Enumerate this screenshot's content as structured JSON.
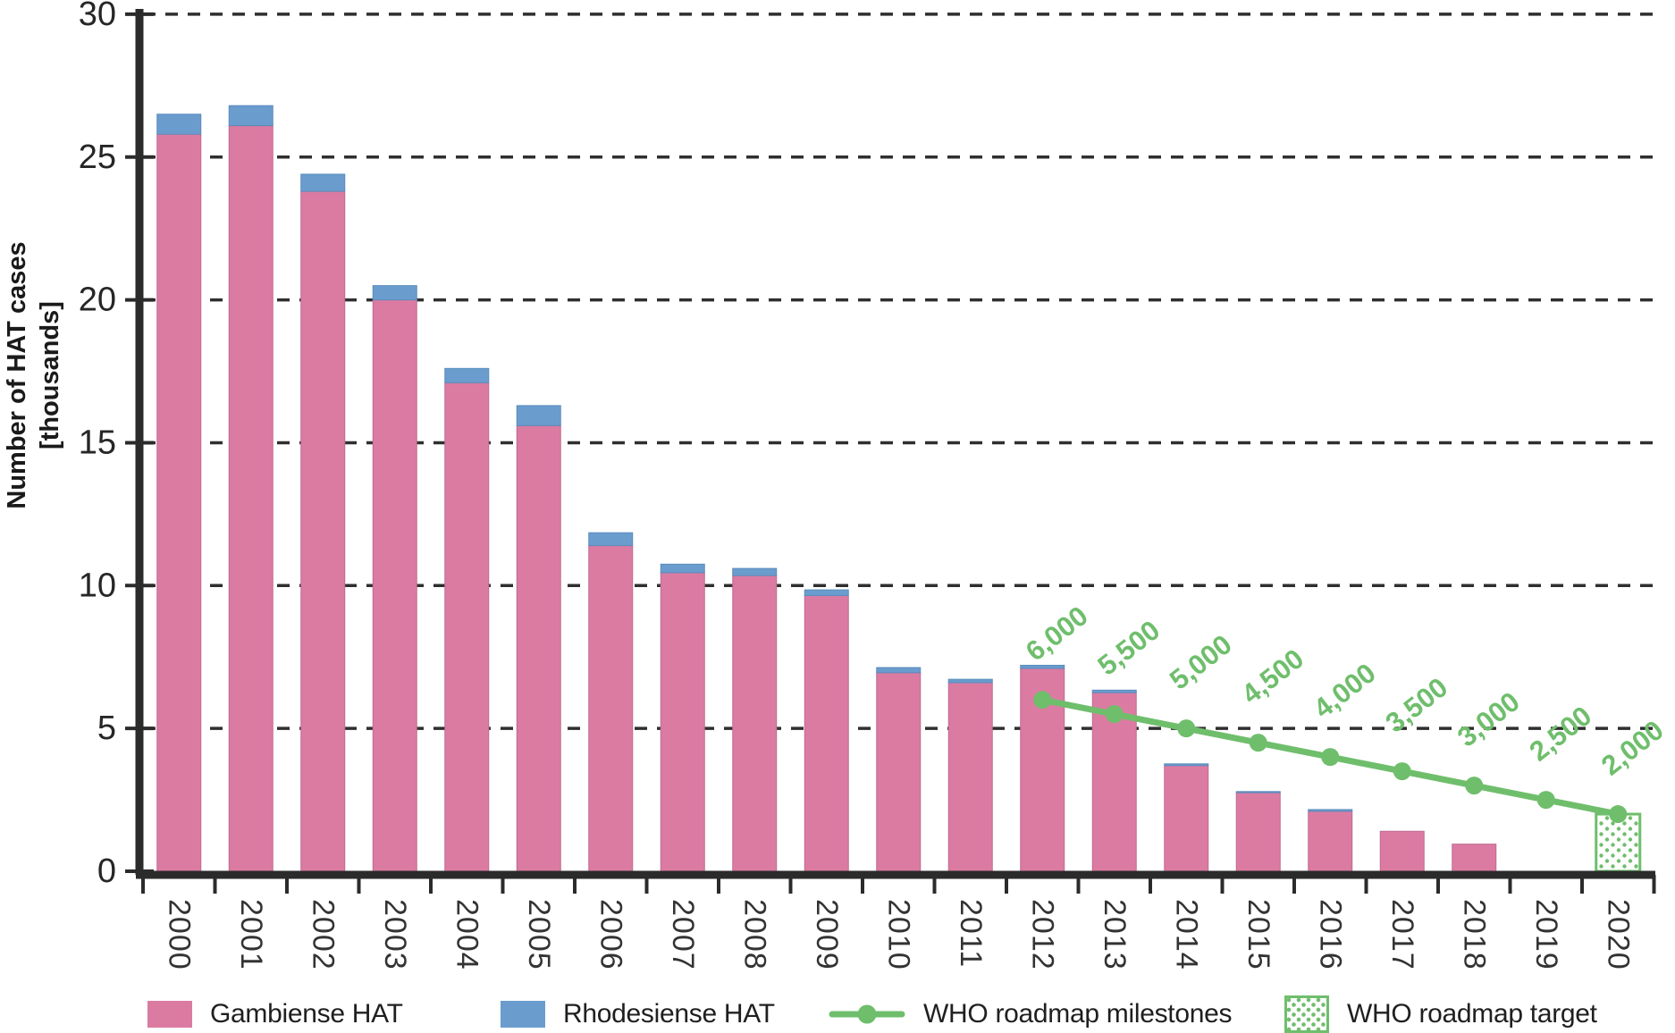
{
  "chart_data": {
    "type": "bar",
    "subtype": "stacked-bars-with-milestone-line",
    "title": "",
    "ylabel_lines": [
      "Number of HAT cases",
      "[thousands]"
    ],
    "ylim": [
      0,
      30
    ],
    "yticks": [
      0,
      5,
      10,
      15,
      20,
      25,
      30
    ],
    "grid": "horizontal-dashed",
    "legend_position": "bottom",
    "categories": [
      "2000",
      "2001",
      "2002",
      "2003",
      "2004",
      "2005",
      "2006",
      "2007",
      "2008",
      "2009",
      "2010",
      "2011",
      "2012",
      "2013",
      "2014",
      "2015",
      "2016",
      "2017",
      "2018",
      "2019",
      "2020"
    ],
    "series": [
      {
        "name": "Gambiense HAT",
        "color": "#DB7BA2",
        "values": [
          25.8,
          26.1,
          23.8,
          20.0,
          17.1,
          15.6,
          11.4,
          10.45,
          10.35,
          9.65,
          6.95,
          6.6,
          7.1,
          6.25,
          3.7,
          2.75,
          2.1,
          1.4,
          0.95,
          null,
          null
        ]
      },
      {
        "name": "Rhodesiense HAT",
        "color": "#6A9CCE",
        "values": [
          0.7,
          0.7,
          0.6,
          0.5,
          0.5,
          0.7,
          0.45,
          0.3,
          0.25,
          0.2,
          0.18,
          0.12,
          0.11,
          0.09,
          0.06,
          0.04,
          0.06,
          0,
          0,
          null,
          null
        ]
      }
    ],
    "milestones": {
      "name": "WHO roadmap milestones",
      "color": "#6FBE6C",
      "points": [
        {
          "year": "2012",
          "value": 6.0,
          "label": "6,000"
        },
        {
          "year": "2013",
          "value": 5.5,
          "label": "5,500"
        },
        {
          "year": "2014",
          "value": 5.0,
          "label": "5,000"
        },
        {
          "year": "2015",
          "value": 4.5,
          "label": "4,500"
        },
        {
          "year": "2016",
          "value": 4.0,
          "label": "4,000"
        },
        {
          "year": "2017",
          "value": 3.5,
          "label": "3,500"
        },
        {
          "year": "2018",
          "value": 3.0,
          "label": "3,000"
        },
        {
          "year": "2019",
          "value": 2.5,
          "label": "2,500"
        },
        {
          "year": "2020",
          "value": 2.0,
          "label": "2,000"
        }
      ]
    },
    "target": {
      "name": "WHO roadmap target",
      "year": "2020",
      "value": 2.0,
      "style": "green-dotted-outline-bar"
    }
  },
  "colors": {
    "gambiense": "#DB7BA2",
    "rhodesiense": "#6A9CCE",
    "green": "#6FBE6C",
    "axis": "#2b2b2b",
    "grid": "#2f2f2f",
    "tick_text": "#262626",
    "year_text": "#333333"
  }
}
